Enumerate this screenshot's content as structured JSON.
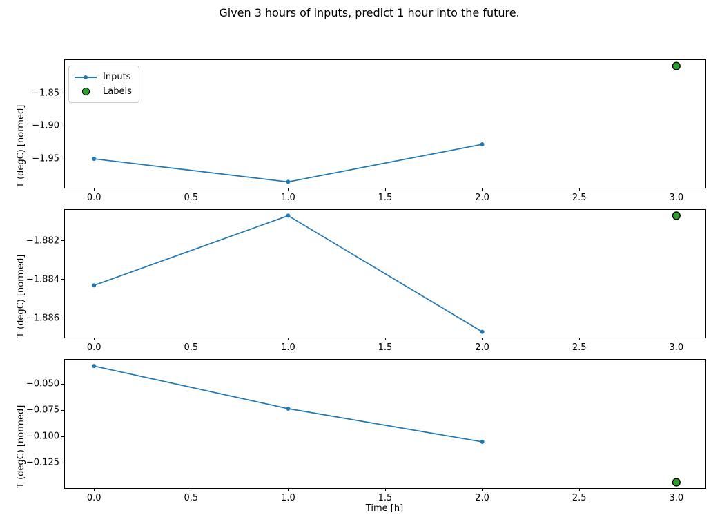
{
  "figure": {
    "background": "#ffffff"
  },
  "colors": {
    "inputs_line": "#1f77b4",
    "labels_fill": "#2ca02c",
    "labels_edge": "#000000",
    "legend_border": "#cccccc",
    "spine": "#000000"
  },
  "chart_data": {
    "type": "line",
    "title": "Given 3 hours of inputs, predict 1 hour into the future.",
    "xlabel": "Time [h]",
    "xlim": [
      -0.15,
      3.15
    ],
    "x_tick_values": [
      0,
      0.5,
      1,
      1.5,
      2,
      2.5,
      3
    ],
    "x_tick_labels": [
      "0.0",
      "0.5",
      "1.0",
      "1.5",
      "2.0",
      "2.5",
      "3.0"
    ],
    "legend": [
      {
        "label": "Inputs",
        "marker": "line-with-dot",
        "color": "#1f77b4"
      },
      {
        "label": "Labels",
        "marker": "circle",
        "color": "#2ca02c",
        "edge": "#000000"
      }
    ],
    "legend_position": "upper left of first subplot",
    "grid": false,
    "panels": [
      {
        "ylabel": "T (degC) [normed]",
        "ylim": [
          -1.994,
          -1.8
        ],
        "y_ticks": [
          {
            "value": -1.85,
            "label": "−1.85"
          },
          {
            "value": -1.9,
            "label": "−1.90"
          },
          {
            "value": -1.95,
            "label": "−1.95"
          }
        ],
        "series": [
          {
            "name": "Inputs",
            "x": [
              0,
              1,
              2
            ],
            "y": [
              -1.95,
              -1.985,
              -1.928
            ]
          }
        ],
        "label_point": {
          "x": 3,
          "y": -1.809
        }
      },
      {
        "ylabel": "T (degC) [normed]",
        "ylim": [
          -1.887,
          -1.8804
        ],
        "y_ticks": [
          {
            "value": -1.882,
            "label": "−1.882"
          },
          {
            "value": -1.884,
            "label": "−1.884"
          },
          {
            "value": -1.886,
            "label": "−1.886"
          }
        ],
        "series": [
          {
            "name": "Inputs",
            "x": [
              0,
              1,
              2
            ],
            "y": [
              -1.8843,
              -1.8807,
              -1.8867
            ]
          }
        ],
        "label_point": {
          "x": 3,
          "y": -1.8807
        }
      },
      {
        "ylabel": "T (degC) [normed]",
        "ylim": [
          -0.149,
          -0.027
        ],
        "y_ticks": [
          {
            "value": -0.05,
            "label": "−0.050"
          },
          {
            "value": -0.075,
            "label": "−0.075"
          },
          {
            "value": -0.1,
            "label": "−0.100"
          },
          {
            "value": -0.125,
            "label": "−0.125"
          }
        ],
        "series": [
          {
            "name": "Inputs",
            "x": [
              0,
              1,
              2
            ],
            "y": [
              -0.033,
              -0.0735,
              -0.105
            ]
          }
        ],
        "label_point": {
          "x": 3,
          "y": -0.1435
        }
      }
    ]
  }
}
